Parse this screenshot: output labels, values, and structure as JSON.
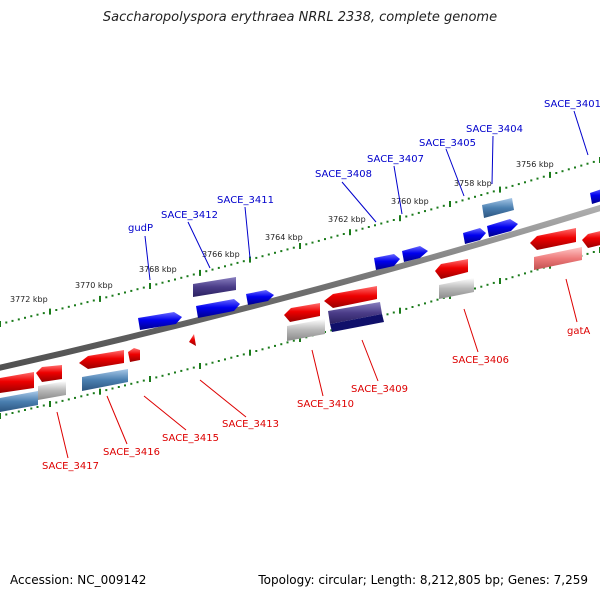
{
  "title": "Saccharopolyspora erythraea NRRL 2338, complete genome",
  "footer": {
    "accession": "Accession: NC_009142",
    "summary": "Topology: circular; Length: 8,212,805 bp; Genes: 7,259"
  },
  "colors": {
    "forward_gene": "#0000ee",
    "reverse_gene": "#ee0000",
    "forward_label": "#0000cc",
    "reverse_label": "#dd0000",
    "tick": "#1a7a1a",
    "backbone": "#7a7a7a"
  },
  "ticks": [
    "3772 kbp",
    "3770 kbp",
    "3768 kbp",
    "3766 kbp",
    "3764 kbp",
    "3762 kbp",
    "3760 kbp",
    "3758 kbp",
    "3756 kbp"
  ],
  "forward_labels": [
    "gudP",
    "SACE_3412",
    "SACE_3411",
    "SACE_3408",
    "SACE_3407",
    "SACE_3405",
    "SACE_3404",
    "SACE_3401"
  ],
  "reverse_labels": [
    "SACE_3417",
    "SACE_3416",
    "SACE_3415",
    "SACE_3413",
    "SACE_3410",
    "SACE_3409",
    "SACE_3406",
    "gatA"
  ]
}
